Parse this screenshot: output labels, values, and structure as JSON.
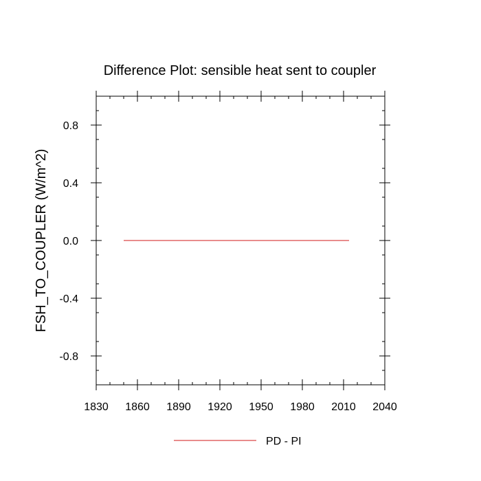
{
  "chart_data": {
    "type": "line",
    "title": "Difference Plot: sensible heat sent to coupler",
    "xlabel": "",
    "ylabel": "FSH_TO_COUPLER  (W/m^2)",
    "xlim": [
      1830,
      2040
    ],
    "ylim": [
      -1.0,
      1.0
    ],
    "x_ticks": [
      1830,
      1860,
      1890,
      1920,
      1950,
      1980,
      2010,
      2040
    ],
    "x_tick_labels": [
      "1830",
      "1860",
      "1890",
      "1920",
      "1950",
      "1980",
      "2010",
      "2040"
    ],
    "y_ticks": [
      -0.8,
      -0.4,
      0.0,
      0.4,
      0.8
    ],
    "y_tick_labels": [
      "-0.8",
      "-0.4",
      "0.0",
      "0.4",
      "0.8"
    ],
    "grid": false,
    "legend_position": "bottom",
    "series": [
      {
        "name": "PD - PI",
        "color": "#e06666",
        "x": [
          1850,
          2014
        ],
        "y": [
          0.0,
          0.0
        ]
      }
    ]
  }
}
